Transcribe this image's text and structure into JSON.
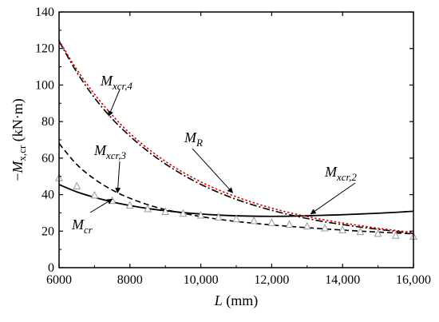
{
  "chart_data": {
    "type": "line",
    "xlabel": {
      "italic": "L",
      "rest": " (mm)"
    },
    "ylabel": {
      "prefix": "−",
      "italic": "M",
      "sub": "x,cr",
      "rest": " (kN·m)"
    },
    "xlim": [
      6000,
      16000
    ],
    "ylim": [
      0,
      140
    ],
    "xticks": [
      6000,
      8000,
      10000,
      12000,
      14000,
      16000
    ],
    "xtick_labels": [
      "6000",
      "8000",
      "10,000",
      "12,000",
      "14,000",
      "16,000"
    ],
    "yticks": [
      0,
      20,
      40,
      60,
      80,
      100,
      120,
      140
    ],
    "ytick_labels": [
      "0",
      "20",
      "40",
      "60",
      "80",
      "100",
      "120",
      "140"
    ],
    "grid": false,
    "series": [
      {
        "key": "xcr2",
        "style": "solid",
        "color": "#000000",
        "x": [
          6000,
          6500,
          7000,
          7500,
          8000,
          8500,
          9000,
          9500,
          10000,
          10500,
          11000,
          11500,
          12000,
          12500,
          13000,
          13500,
          14000,
          14500,
          15000,
          15500,
          16000
        ],
        "y": [
          45.5,
          41.5,
          38.5,
          36.0,
          34.0,
          32.4,
          31.2,
          30.2,
          29.4,
          28.8,
          28.4,
          28.2,
          28.1,
          28.2,
          28.4,
          28.7,
          29.0,
          29.4,
          29.8,
          30.3,
          30.9
        ]
      },
      {
        "key": "xcr3",
        "style": "dashed",
        "color": "#000000",
        "x": [
          6000,
          6500,
          7000,
          7500,
          8000,
          8500,
          9000,
          9500,
          10000,
          10500,
          11000,
          11500,
          12000,
          12500,
          13000,
          13500,
          14000,
          14500,
          15000,
          15500,
          16000
        ],
        "y": [
          68.0,
          56.5,
          48.5,
          42.5,
          38.0,
          34.5,
          31.8,
          29.8,
          28.0,
          26.5,
          25.3,
          24.3,
          23.4,
          22.6,
          21.9,
          21.2,
          20.6,
          20.0,
          19.5,
          19.0,
          18.5
        ]
      },
      {
        "key": "xcr4",
        "style": "dashdot",
        "color": "#000000",
        "x": [
          6000,
          6500,
          7000,
          7500,
          8000,
          8500,
          9000,
          9500,
          10000,
          10500,
          11000,
          11500,
          12000,
          12500,
          13000,
          13500,
          14000,
          14500,
          15000,
          15500,
          16000
        ],
        "y": [
          124.0,
          107.0,
          93.0,
          81.5,
          72.0,
          63.8,
          56.8,
          50.8,
          45.6,
          41.2,
          37.4,
          34.2,
          31.4,
          29.0,
          26.9,
          25.1,
          23.6,
          22.2,
          21.0,
          19.9,
          18.7
        ]
      },
      {
        "key": "R",
        "style": "dotted",
        "color": "#e00000",
        "x": [
          6000,
          6500,
          7000,
          7500,
          8000,
          8500,
          9000,
          9500,
          10000,
          10500,
          11000,
          11500,
          12000,
          12500,
          13000,
          13500,
          14000,
          14500,
          15000,
          15500,
          16000
        ],
        "y": [
          124.5,
          108.5,
          95.0,
          83.5,
          73.5,
          65.3,
          58.2,
          52.2,
          47.0,
          42.6,
          38.8,
          35.5,
          32.6,
          30.1,
          28.0,
          26.1,
          24.5,
          23.0,
          21.6,
          20.4,
          19.2
        ]
      },
      {
        "key": "cr",
        "style": "markers",
        "marker": "triangle",
        "color": "#999999",
        "x": [
          6000,
          6500,
          7000,
          7500,
          8000,
          8500,
          9000,
          9500,
          10000,
          10500,
          11000,
          11500,
          12000,
          12500,
          13000,
          13500,
          14000,
          14500,
          15000,
          15500,
          16000
        ],
        "y": [
          49.0,
          44.5,
          39.5,
          36.5,
          34.0,
          32.0,
          30.5,
          29.5,
          28.5,
          27.5,
          26.5,
          25.5,
          24.5,
          23.5,
          22.5,
          21.5,
          20.5,
          19.5,
          18.5,
          17.5,
          17.0
        ]
      }
    ],
    "annotations": [
      {
        "key": "xcr4",
        "main": "M",
        "sub": "xcr,4",
        "arrow_to": [
          7400,
          83
        ]
      },
      {
        "key": "R",
        "main": "M",
        "sub": "R",
        "arrow_to": [
          10900,
          41
        ]
      },
      {
        "key": "xcr3",
        "main": "M",
        "sub": "xcr,3",
        "arrow_to": [
          7650,
          41
        ]
      },
      {
        "key": "xcr2",
        "main": "M",
        "sub": "xcr,2",
        "arrow_to": [
          13100,
          29.4
        ]
      },
      {
        "key": "cr",
        "main": "M",
        "sub": "cr",
        "arrow_to": [
          7500,
          37.5
        ]
      }
    ]
  }
}
